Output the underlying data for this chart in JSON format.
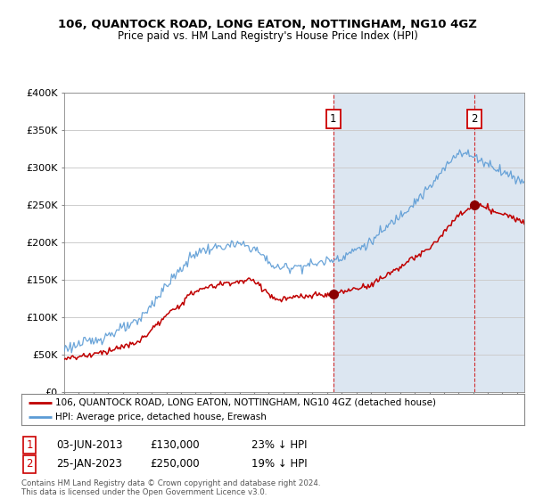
{
  "title": "106, QUANTOCK ROAD, LONG EATON, NOTTINGHAM, NG10 4GZ",
  "subtitle": "Price paid vs. HM Land Registry's House Price Index (HPI)",
  "ylim": [
    0,
    400000
  ],
  "yticks": [
    0,
    50000,
    100000,
    150000,
    200000,
    250000,
    300000,
    350000,
    400000
  ],
  "ytick_labels": [
    "£0",
    "£50K",
    "£100K",
    "£150K",
    "£200K",
    "£250K",
    "£300K",
    "£350K",
    "£400K"
  ],
  "xlim_start": 1995,
  "xlim_end": 2026.5,
  "hpi_color": "#5b9bd5",
  "price_color": "#c00000",
  "sale1_x": 2013.42,
  "sale1_y": 130000,
  "sale2_x": 2023.08,
  "sale2_y": 250000,
  "sale1_date": "03-JUN-2013",
  "sale1_price": 130000,
  "sale1_pct": "23% ↓ HPI",
  "sale2_date": "25-JAN-2023",
  "sale2_price": 250000,
  "sale2_pct": "19% ↓ HPI",
  "legend_price_label": "106, QUANTOCK ROAD, LONG EATON, NOTTINGHAM, NG10 4GZ (detached house)",
  "legend_hpi_label": "HPI: Average price, detached house, Erewash",
  "footnote": "Contains HM Land Registry data © Crown copyright and database right 2024.\nThis data is licensed under the Open Government Licence v3.0.",
  "background_color": "#ffffff",
  "plot_bg_color": "#ffffff",
  "shade_color": "#dce6f1",
  "hatch_color": "#aaaaaa"
}
